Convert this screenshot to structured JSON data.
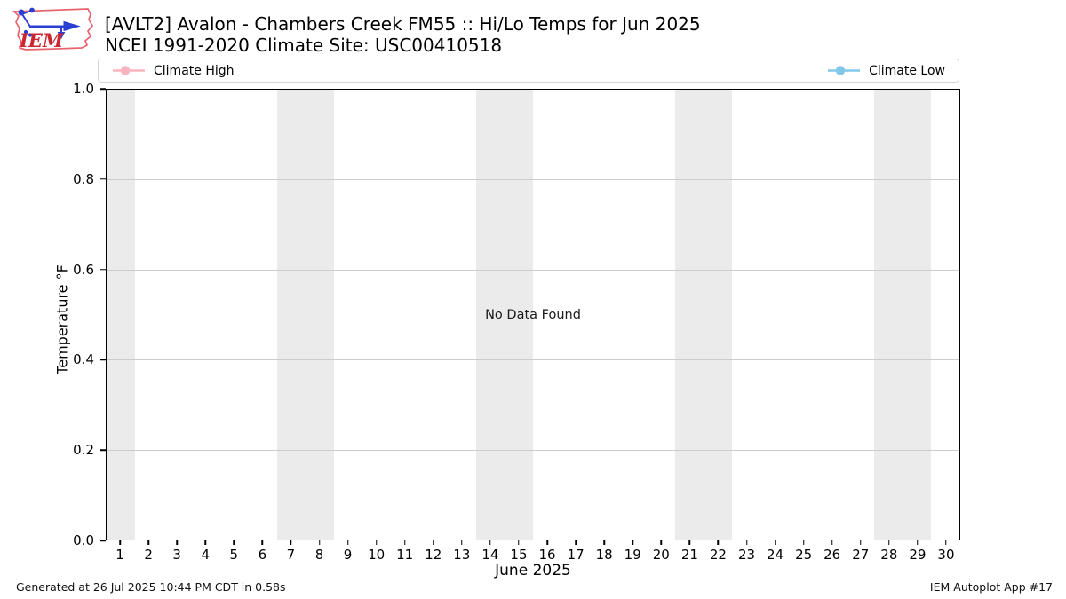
{
  "header": {
    "title_line1": "[AVLT2] Avalon - Chambers Creek FM55 :: Hi/Lo Temps for Jun 2025",
    "title_line2": "NCEI 1991-2020 Climate Site: USC00410518",
    "logo_text": "IEM"
  },
  "legend": {
    "items": [
      {
        "label": "Climate High",
        "color": "#f9b4c0"
      },
      {
        "label": "Climate Low",
        "color": "#82c8e8"
      }
    ]
  },
  "colors": {
    "weekend_band": "#ebebeb",
    "gridline": "#cccccc",
    "spine": "#000000",
    "background": "#ffffff",
    "logo_red": "#cc2630",
    "logo_outline": "#e8636f",
    "logo_blue": "#2b3fd0"
  },
  "chart_data": {
    "type": "line",
    "title": "[AVLT2] Avalon - Chambers Creek FM55 :: Hi/Lo Temps for Jun 2025",
    "subtitle": "NCEI 1991-2020 Climate Site: USC00410518",
    "xlabel": "June 2025",
    "ylabel": "Temperature °F",
    "xlim": [
      0.5,
      30.5
    ],
    "ylim": [
      0.0,
      1.0
    ],
    "x_ticks": [
      1,
      2,
      3,
      4,
      5,
      6,
      7,
      8,
      9,
      10,
      11,
      12,
      13,
      14,
      15,
      16,
      17,
      18,
      19,
      20,
      21,
      22,
      23,
      24,
      25,
      26,
      27,
      28,
      29,
      30
    ],
    "y_ticks": [
      {
        "value": 0.0,
        "label": "0.0"
      },
      {
        "value": 0.2,
        "label": "0.2"
      },
      {
        "value": 0.4,
        "label": "0.4"
      },
      {
        "value": 0.6,
        "label": "0.6"
      },
      {
        "value": 0.8,
        "label": "0.8"
      },
      {
        "value": 1.0,
        "label": "1.0"
      }
    ],
    "grid_values": [
      0.2,
      0.4,
      0.6,
      0.8
    ],
    "grid": "horizontal-major",
    "legend_position": "top",
    "weekend_bands": [
      [
        0.5,
        1.5
      ],
      [
        6.5,
        8.5
      ],
      [
        13.5,
        15.5
      ],
      [
        20.5,
        22.5
      ],
      [
        27.5,
        29.5
      ]
    ],
    "series": [
      {
        "name": "Climate High",
        "color": "#f9b4c0",
        "x": [],
        "y": []
      },
      {
        "name": "Climate Low",
        "color": "#82c8e8",
        "x": [],
        "y": []
      }
    ],
    "annotations": [
      {
        "text": "No Data Found",
        "x": 15.5,
        "y": 0.5
      }
    ]
  },
  "footer": {
    "left": "Generated at 26 Jul 2025 10:44 PM CDT in 0.58s",
    "right": "IEM Autoplot App #17"
  }
}
